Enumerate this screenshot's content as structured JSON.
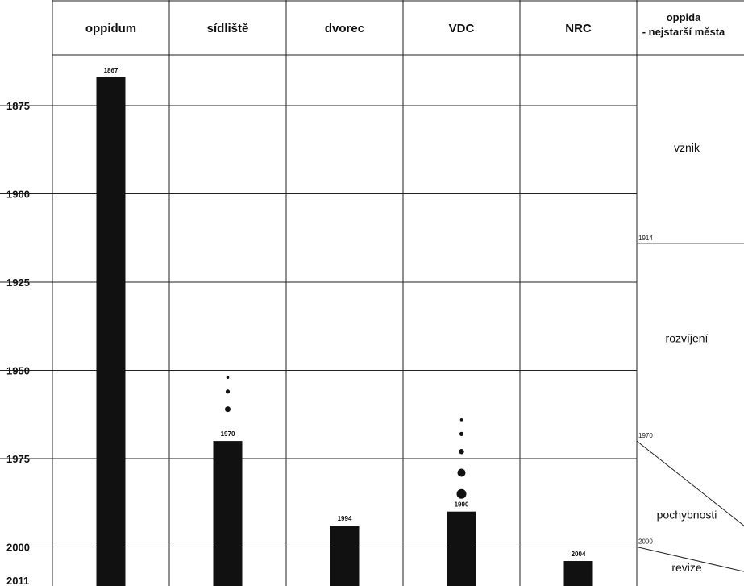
{
  "chart_data": {
    "type": "bar",
    "categories": [
      "oppidum",
      "sídliště",
      "dvorec",
      "VDC",
      "NRC"
    ],
    "values": [
      1867,
      1970,
      1994,
      1990,
      2004
    ],
    "value_labels": [
      "1867",
      "1970",
      "1994",
      "1990",
      "2004"
    ],
    "y_axis": {
      "ticks": [
        1875,
        1900,
        1925,
        1950,
        1975,
        2000
      ],
      "tick_labels": [
        "1875",
        "1900",
        "1925",
        "1950",
        "1975",
        "2000"
      ],
      "bottom_label": "2011",
      "ylim": [
        1853,
        2011
      ],
      "direction": "down"
    },
    "dot_trails": [
      {
        "category": "sídliště",
        "dots": [
          {
            "year": 1952,
            "r": 1.8
          },
          {
            "year": 1956,
            "r": 2.6
          },
          {
            "year": 1961,
            "r": 3.5
          }
        ]
      },
      {
        "category": "VDC",
        "dots": [
          {
            "year": 1964,
            "r": 1.8
          },
          {
            "year": 1968,
            "r": 2.6
          },
          {
            "year": 1973,
            "r": 3.2
          },
          {
            "year": 1979,
            "r": 5.0
          },
          {
            "year": 1985,
            "r": 6.0
          }
        ]
      }
    ],
    "bar_color": "#111111",
    "grid": true
  },
  "side_panel": {
    "title_line1": "oppida",
    "title_line2": "- nejstarší města",
    "phases": [
      {
        "label": "vznik",
        "center_year": 1888
      },
      {
        "label": "rozvíjení",
        "center_year": 1942
      },
      {
        "label": "pochybnosti",
        "center_year": 1992
      },
      {
        "label": "revize",
        "center_year": 2007
      }
    ],
    "boundaries": [
      {
        "label": "1914",
        "start_year": 1914,
        "end_year": 1914
      },
      {
        "label": "1970",
        "start_year": 1970,
        "end_year": 1994
      },
      {
        "label": "2000",
        "start_year": 2000,
        "end_year": 2007
      }
    ]
  }
}
